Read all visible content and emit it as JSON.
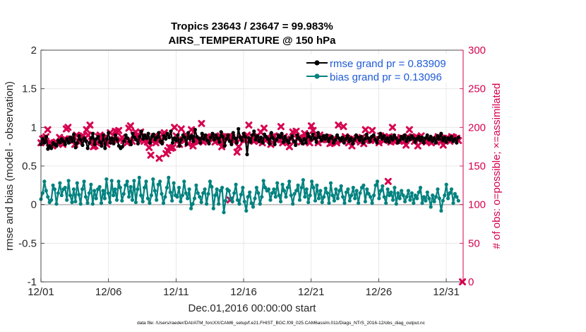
{
  "chart_data": {
    "type": "line",
    "title": "Tropics 23643 / 23647 = 99.983%",
    "subtitle": "AIRS_TEMPERATURE @ 150 hPa",
    "xlabel": "Dec.01,2016 00:00:00 start",
    "ylabel": "rmse and bias (model - observation)",
    "y2label": "# of obs: o=possible; ×=assimilated",
    "footnote": "data file: /Users/raeder/DAI/ATM_forcXX/CAM6_setup/f.e21.FHIST_BGC.f09_025.CAM6assim.011/Diags_NTrS_2016-12/obs_diag_output.nc",
    "xlim": [
      1,
      32.25
    ],
    "ylim": [
      -1,
      2
    ],
    "y2lim": [
      0,
      300
    ],
    "x_ticks": [
      1,
      6,
      11,
      16,
      21,
      26,
      31
    ],
    "x_tick_labels": [
      "12/01",
      "12/06",
      "12/11",
      "12/16",
      "12/21",
      "12/26",
      "12/31"
    ],
    "y_ticks": [
      -1,
      -0.5,
      0,
      0.5,
      1,
      1.5,
      2
    ],
    "y_tick_labels": [
      "-1",
      "-0.5",
      "0",
      "0.5",
      "1",
      "1.5",
      "2"
    ],
    "y2_ticks": [
      0,
      50,
      100,
      150,
      200,
      250,
      300
    ],
    "y2_tick_labels": [
      "0",
      "50",
      "100",
      "150",
      "200",
      "250",
      "300"
    ],
    "grid": true,
    "legend_position": "top-right",
    "series": [
      {
        "name": "rmse grand pr = 0.83909",
        "color": "#000000",
        "axis": "left",
        "values": [
          0.78,
          0.85,
          0.8,
          0.88,
          0.72,
          0.76,
          0.73,
          0.8,
          0.78,
          0.76,
          0.83,
          0.8,
          0.85,
          0.82,
          0.78,
          0.85,
          0.8,
          0.87,
          0.82,
          0.91,
          0.74,
          0.8,
          0.89,
          0.84,
          0.77,
          0.86,
          0.82,
          0.73,
          0.8,
          0.86,
          0.92,
          0.78,
          0.85,
          0.88,
          0.81,
          0.76,
          0.9,
          0.73,
          0.85,
          0.93,
          0.8,
          0.86,
          0.79,
          0.9,
          0.84,
          0.76,
          0.73,
          0.75,
          0.82,
          0.9,
          0.86,
          0.82,
          0.78,
          0.92,
          0.87,
          0.84,
          0.79,
          0.88,
          0.95,
          0.85,
          0.9,
          0.86,
          0.92,
          0.8,
          0.88,
          0.91,
          0.84,
          0.87,
          0.93,
          0.82,
          0.79,
          0.89,
          0.85,
          0.92,
          0.87,
          0.95,
          0.8,
          0.86,
          0.83,
          0.9,
          0.76,
          0.84,
          0.9,
          0.87,
          0.78,
          0.93,
          0.85,
          0.89,
          0.82,
          0.97,
          0.88,
          0.86,
          0.8,
          0.92,
          0.85,
          0.9,
          0.83,
          0.79,
          0.87,
          0.92,
          0.84,
          0.9,
          0.86,
          0.81,
          0.94,
          0.88,
          0.76,
          0.85,
          0.9,
          0.82,
          0.78,
          0.93,
          0.86,
          0.8,
          0.98,
          0.87,
          0.83,
          0.92,
          0.88,
          0.65,
          0.86,
          0.81,
          0.9,
          0.95,
          0.84,
          0.89,
          0.82,
          0.87,
          0.8,
          0.91,
          0.88,
          0.85,
          0.79,
          0.93,
          0.86,
          0.78,
          0.84,
          0.9,
          0.87,
          0.92,
          0.81,
          0.88,
          0.83,
          0.8,
          0.86,
          0.89,
          0.82,
          0.77,
          0.9,
          0.86,
          0.83,
          0.79,
          0.85,
          0.8,
          0.92,
          0.88,
          0.84,
          0.91,
          0.86,
          0.81,
          0.93,
          0.87,
          0.83,
          0.89,
          0.85,
          0.9,
          0.82,
          0.86,
          0.88,
          0.8,
          0.84,
          0.9,
          0.86,
          0.83,
          0.87,
          0.8,
          0.85,
          0.89,
          0.82,
          0.86,
          0.79,
          0.84,
          0.9,
          0.87,
          0.83,
          0.88,
          0.8,
          0.85,
          0.91,
          0.86,
          0.82,
          0.88,
          0.9,
          0.84,
          0.8,
          0.87,
          0.92,
          0.85,
          0.89,
          0.82,
          0.86,
          0.81,
          0.88,
          0.84,
          0.9,
          0.86,
          0.8,
          0.83,
          0.88,
          0.85,
          0.9,
          0.82,
          0.87,
          0.84,
          0.89,
          0.86,
          0.81,
          0.85,
          0.88,
          0.83,
          0.87,
          0.8,
          0.86,
          0.9,
          0.84,
          0.88,
          0.82,
          0.86,
          0.8,
          0.89,
          0.85,
          0.92,
          0.83,
          0.87,
          0.81,
          0.86,
          0.84,
          0.88,
          0.82,
          0.85,
          0.8,
          0.87
        ]
      },
      {
        "name": "bias grand pr = 0.13096",
        "color": "#00827f",
        "axis": "left",
        "values": [
          0.07,
          0.15,
          0.3,
          0.18,
          0.1,
          0.03,
          0.06,
          0.25,
          0.2,
          0.01,
          0.15,
          0.28,
          0.12,
          0.2,
          0.22,
          0.06,
          0.31,
          0.12,
          0.03,
          0.2,
          0.04,
          0.28,
          0.13,
          0.01,
          0.2,
          0.3,
          0.1,
          0.02,
          0.15,
          0.26,
          0.01,
          0.18,
          0.08,
          0.2,
          0.23,
          0.02,
          0.18,
          0.08,
          0.33,
          0.15,
          0.03,
          0.31,
          0.12,
          0.2,
          0.06,
          0.3,
          0.22,
          0.05,
          0.14,
          0.25,
          0.3,
          0.1,
          0.23,
          0.06,
          0.31,
          0.03,
          0.2,
          0.35,
          0.12,
          0.04,
          0.22,
          0.3,
          0.08,
          0.02,
          0.12,
          0.33,
          0.18,
          0.06,
          0.26,
          0.3,
          0.14,
          0.02,
          0.1,
          0.22,
          0.35,
          0.16,
          0.05,
          0.28,
          0.12,
          0.1,
          0.22,
          0.04,
          0.12,
          0.3,
          0.15,
          0.08,
          0.2,
          -0.05,
          0.01,
          0.08,
          0.25,
          0.15,
          0.1,
          0.03,
          0.15,
          0.2,
          0.01,
          0.14,
          0.3,
          0.23,
          -0.05,
          0.12,
          0.2,
          0.01,
          0.18,
          0.22,
          -0.1,
          0.05,
          0.2,
          0.18,
          0.08,
          0.04,
          0.15,
          0.26,
          0.06,
          0.01,
          0.13,
          0.22,
          0.04,
          -0.08,
          0.1,
          0.16,
          0.02,
          -0.03,
          0.08,
          0.22,
          0.15,
          0.01,
          0.1,
          0.31,
          0.22,
          0.18,
          0.2,
          0.06,
          0.15,
          0.2,
          0.1,
          0.28,
          0.12,
          0.04,
          0.26,
          0.18,
          0.1,
          0.22,
          0.3,
          0.12,
          0.01,
          0.14,
          0.18,
          0.25,
          0.06,
          0.22,
          0.32,
          0.1,
          0.2,
          0.03,
          0.12,
          0.3,
          0.22,
          0.05,
          0.25,
          0.08,
          0.18,
          0.03,
          0.1,
          0.21,
          0.15,
          0.02,
          0.28,
          0.12,
          0.05,
          0.2,
          0.08,
          0.18,
          0.24,
          0.1,
          0.02,
          0.16,
          0.2,
          0.05,
          0.12,
          0.22,
          0.08,
          0.18,
          0.02,
          0.15,
          0.22,
          0.25,
          0.04,
          0.2,
          0.14,
          0.1,
          0.02,
          0.12,
          0.25,
          0.3,
          0.08,
          0.18,
          0.24,
          0.1,
          0.02,
          0.2,
          0.12,
          0.16,
          0.06,
          0.22,
          0.01,
          0.15,
          0.08,
          0.18,
          0.12,
          0.04,
          0.1,
          0.18,
          0.06,
          0.15,
          0.02,
          0.12,
          0.08,
          0.16,
          0.22,
          0.02,
          0.1,
          0.05,
          0.16,
          0.08,
          -0.03,
          0.12,
          0.04,
          0.1,
          0.2,
          0.08,
          -0.08,
          0.05,
          0.12,
          0.26,
          0.08,
          0.15,
          0.2,
          0.02,
          0.14,
          0.1,
          0.05
        ]
      },
      {
        "name": "# obs assimilated",
        "color": "#d6004f",
        "axis": "right",
        "marker": "x",
        "values": [
          180,
          185,
          186,
          188,
          197,
          180,
          180,
          176,
          180,
          181,
          179,
          187,
          184,
          178,
          185,
          198,
          200,
          185,
          185,
          183,
          178,
          190,
          182,
          181,
          188,
          189,
          186,
          197,
          190,
          203,
          182,
          175,
          176,
          180,
          188,
          190,
          188,
          186,
          181,
          178,
          182,
          193,
          184,
          184,
          195,
          194,
          196,
          184,
          187,
          183,
          183,
          180,
          199,
          202,
          182,
          190,
          194,
          187,
          188,
          194,
          184,
          182,
          187,
          181,
          174,
          164,
          182,
          188,
          180,
          183,
          160,
          184,
          191,
          193,
          166,
          170,
          174,
          173,
          174,
          200,
          189,
          183,
          178,
          198,
          184,
          183,
          190,
          179,
          189,
          197,
          176,
          182,
          184,
          181,
          185,
          205,
          181,
          183,
          187,
          186,
          187,
          188,
          185,
          181,
          187,
          183,
          189,
          175,
          180,
          187,
          188,
          188,
          188,
          187,
          182,
          184,
          168,
          175,
          185,
          187,
          183,
          184,
          190,
          203,
          185,
          188,
          182,
          184,
          189,
          182,
          194,
          180,
          199,
          183,
          187,
          185,
          178,
          188,
          189,
          184,
          184,
          188,
          201,
          180,
          188,
          184,
          183,
          175,
          185,
          194,
          182,
          195,
          185,
          187,
          181,
          186,
          192,
          188,
          184,
          180,
          202,
          196,
          186,
          189,
          180,
          190,
          184,
          184,
          185,
          187,
          187,
          179,
          180,
          185,
          184,
          180,
          203,
          184,
          183,
          201,
          188,
          186,
          180,
          184,
          176,
          185,
          183,
          186,
          185,
          181,
          187,
          179,
          197,
          183,
          185,
          183,
          196,
          184,
          184,
          185,
          180,
          189,
          184,
          183,
          186,
          187,
          188,
          181,
          200,
          182,
          185,
          183,
          184,
          187,
          186,
          182,
          177,
          188,
          197,
          185,
          187,
          182,
          188,
          176,
          185,
          189,
          183,
          183,
          181,
          184,
          182,
          180,
          186,
          184,
          181,
          188,
          187,
          183,
          177,
          184,
          186,
          186,
          182,
          188,
          187,
          185,
          186,
          183
        ]
      }
    ],
    "obs_outliers": [
      {
        "x": 15.0,
        "y2": 106
      },
      {
        "x": 26.7,
        "y2": 130
      },
      {
        "x": 32.2,
        "y2": 0
      }
    ]
  }
}
